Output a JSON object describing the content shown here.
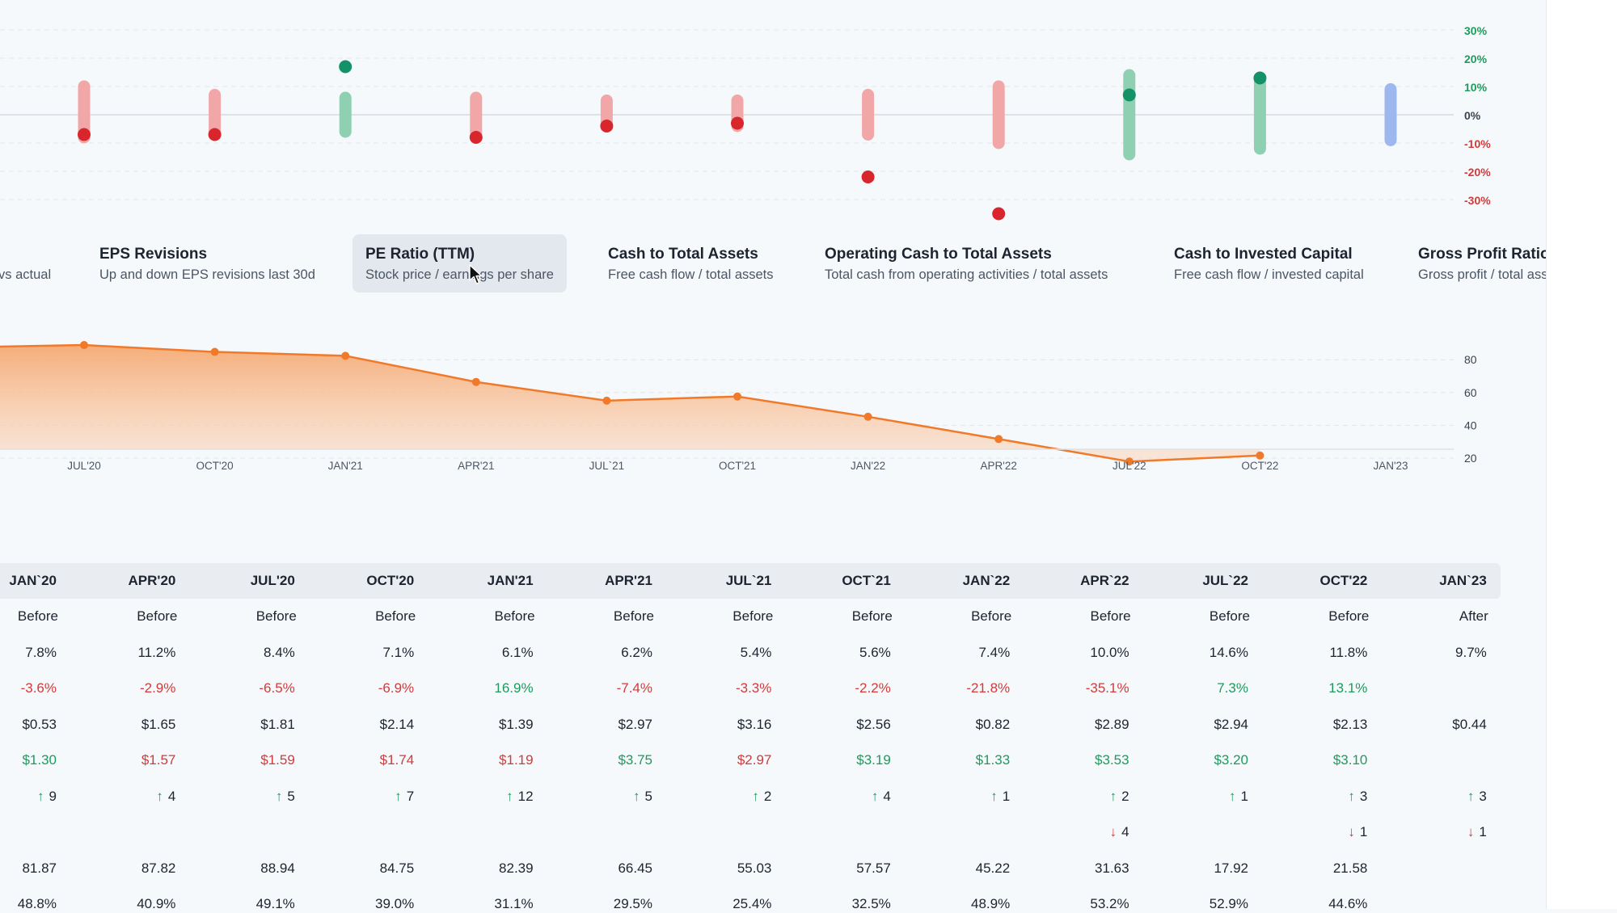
{
  "colors": {
    "positive": "#1f9a5c",
    "negative": "#d23a3a",
    "area_line": "#f07a2a",
    "neutral_bar": "#9db7ef"
  },
  "top_chart": {
    "y_ticks": [
      "30%",
      "20%",
      "10%",
      "0%",
      "-10%",
      "-20%",
      "-30%"
    ],
    "columns": [
      {
        "bar": [
          10,
          -8
        ],
        "dot": -7
      },
      {
        "bar": [
          7,
          -7
        ],
        "dot": -7
      },
      {
        "bar": [
          6,
          -6
        ],
        "dot": 17
      },
      {
        "bar": [
          6,
          -8
        ],
        "dot": -8
      },
      {
        "bar": [
          5,
          -4
        ],
        "dot": -4
      },
      {
        "bar": [
          5,
          -4
        ],
        "dot": -3
      },
      {
        "bar": [
          7,
          -7
        ],
        "dot": -22
      },
      {
        "bar": [
          10,
          -10
        ],
        "dot": -35
      },
      {
        "bar": [
          14,
          -14
        ],
        "dot": 7
      },
      {
        "bar": [
          13,
          -12
        ],
        "dot": 13
      },
      {
        "bar": [
          9,
          -9
        ],
        "dot": null
      }
    ]
  },
  "metric_tabs": [
    {
      "title": "",
      "subtitle": "vs actual"
    },
    {
      "title": "EPS Revisions",
      "subtitle": "Up and down EPS revisions last 30d"
    },
    {
      "title": "PE Ratio (TTM)",
      "subtitle": "Stock price / earnings per share"
    },
    {
      "title": "Cash to Total Assets",
      "subtitle": "Free cash flow / total assets"
    },
    {
      "title": "Operating Cash to Total Assets",
      "subtitle": "Total cash from operating activities / total assets"
    },
    {
      "title": "Cash to Invested Capital",
      "subtitle": "Free cash flow / invested capital"
    },
    {
      "title": "Gross Profit Ratio",
      "subtitle": "Gross profit / total assets"
    }
  ],
  "chart_data": {
    "type": "area",
    "categories": [
      "JUL'20",
      "OCT'20",
      "JAN'21",
      "APR'21",
      "JUL'21",
      "OCT'21",
      "JAN'22",
      "APR'22",
      "JUL'22",
      "OCT'22",
      "JAN'23"
    ],
    "x_tick_labels": [
      "JUL'20",
      "OCT'20",
      "JAN'21",
      "APR'21",
      "JUL`21",
      "OCT'21",
      "JAN'22",
      "APR'22",
      "JUL'22",
      "OCT'22",
      "JAN'23"
    ],
    "values": [
      88.94,
      84.75,
      82.39,
      66.45,
      55.03,
      57.57,
      45.22,
      31.63,
      17.92,
      21.58,
      null
    ],
    "y_ticks": [
      80,
      60,
      40,
      20
    ],
    "ylim": [
      10,
      92
    ],
    "grid": true
  },
  "table": {
    "headers": [
      "JAN`20",
      "APR'20",
      "JUL'20",
      "OCT'20",
      "JAN'21",
      "APR'21",
      "JUL`21",
      "OCT`21",
      "JAN`22",
      "APR`22",
      "JUL`22",
      "OCT'22",
      "JAN`23"
    ],
    "rows": [
      {
        "type": "text",
        "cells": [
          "Before",
          "Before",
          "Before",
          "Before",
          "Before",
          "Before",
          "Before",
          "Before",
          "Before",
          "Before",
          "Before",
          "Before",
          "After"
        ]
      },
      {
        "type": "text",
        "cells": [
          "7.8%",
          "11.2%",
          "8.4%",
          "7.1%",
          "6.1%",
          "6.2%",
          "5.4%",
          "5.6%",
          "7.4%",
          "10.0%",
          "14.6%",
          "11.8%",
          "9.7%"
        ]
      },
      {
        "type": "signed",
        "cells": [
          "-3.6%",
          "-2.9%",
          "-6.5%",
          "-6.9%",
          "16.9%",
          "-7.4%",
          "-3.3%",
          "-2.2%",
          "-21.8%",
          "-35.1%",
          "7.3%",
          "13.1%",
          ""
        ]
      },
      {
        "type": "text",
        "cells": [
          "$0.53",
          "$1.65",
          "$1.81",
          "$2.14",
          "$1.39",
          "$2.97",
          "$3.16",
          "$2.56",
          "$0.82",
          "$2.89",
          "$2.94",
          "$2.13",
          "$0.44"
        ]
      },
      {
        "type": "colored",
        "cells": [
          "$1.30",
          "$1.57",
          "$1.59",
          "$1.74",
          "$1.19",
          "$3.75",
          "$2.97",
          "$3.19",
          "$1.33",
          "$3.53",
          "$3.20",
          "$3.10",
          ""
        ],
        "colors": [
          "pos",
          "neg",
          "neg",
          "neg",
          "neg",
          "pos",
          "neg",
          "pos",
          "pos",
          "pos",
          "pos",
          "pos",
          ""
        ]
      },
      {
        "type": "up",
        "cells": [
          "9",
          "4",
          "5",
          "7",
          "12",
          "5",
          "2",
          "4",
          "1",
          "2",
          "1",
          "3",
          "3"
        ]
      },
      {
        "type": "down",
        "cells": [
          "",
          "",
          "",
          "",
          "",
          "",
          "",
          "",
          "",
          "4",
          "",
          "1",
          "1"
        ]
      },
      {
        "type": "text",
        "cells": [
          "81.87",
          "87.82",
          "88.94",
          "84.75",
          "82.39",
          "66.45",
          "55.03",
          "57.57",
          "45.22",
          "31.63",
          "17.92",
          "21.58",
          ""
        ]
      },
      {
        "type": "text",
        "cells": [
          "48.8%",
          "40.9%",
          "49.1%",
          "39.0%",
          "31.1%",
          "29.5%",
          "25.4%",
          "32.5%",
          "48.9%",
          "53.2%",
          "52.9%",
          "44.6%",
          ""
        ]
      }
    ]
  }
}
